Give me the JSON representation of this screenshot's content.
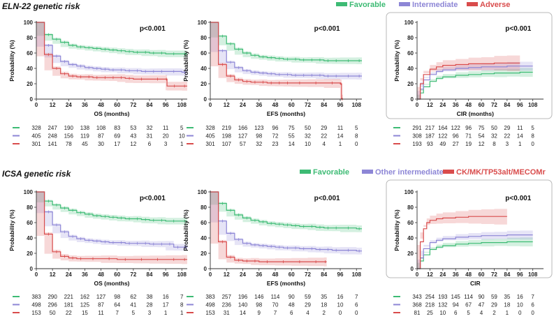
{
  "sections": [
    {
      "title": "ELN-22 genetic risk",
      "legend": [
        {
          "label": "Favorable",
          "color": "#3dbb74"
        },
        {
          "label": "Intermediate",
          "color": "#8d86d6"
        },
        {
          "label": "Adverse",
          "color": "#d94c4c"
        }
      ]
    },
    {
      "title": "ICSA genetic risk",
      "legend": [
        {
          "label": "Favorable",
          "color": "#3dbb74"
        },
        {
          "label": "Other intermediate",
          "color": "#8d86d6"
        },
        {
          "label": "CK/MK/TP53alt/MECOMr",
          "color": "#d94c4c"
        }
      ]
    }
  ],
  "chart_data": [
    {
      "type": "line",
      "id": "eln-os",
      "xlabel": "OS (months)",
      "ylabel": "Probability (%)",
      "pvalue": "p<0.001",
      "xlim": [
        0,
        112
      ],
      "ylim": [
        0,
        100
      ],
      "boxed": false,
      "xticks_max": 108,
      "series": [
        {
          "name": "Favorable",
          "color": "#3dbb74",
          "x": [
            0,
            6,
            12,
            18,
            24,
            30,
            36,
            42,
            48,
            54,
            60,
            66,
            72,
            78,
            84,
            90,
            96,
            108,
            112
          ],
          "y": [
            100,
            84,
            78,
            74,
            70,
            68,
            67,
            66,
            65,
            64,
            63,
            62,
            61,
            61,
            60,
            60,
            59,
            59,
            59
          ]
        },
        {
          "name": "Intermediate",
          "color": "#8d86d6",
          "x": [
            0,
            6,
            12,
            18,
            24,
            30,
            36,
            42,
            48,
            54,
            60,
            66,
            72,
            78,
            84,
            90,
            96,
            108,
            112
          ],
          "y": [
            100,
            70,
            56,
            49,
            45,
            43,
            41,
            40,
            39,
            38,
            38,
            37,
            37,
            36,
            36,
            36,
            36,
            35,
            35
          ]
        },
        {
          "name": "Adverse",
          "color": "#d94c4c",
          "x": [
            0,
            6,
            12,
            18,
            24,
            30,
            36,
            42,
            48,
            54,
            60,
            66,
            72,
            84,
            96,
            97,
            108,
            112
          ],
          "y": [
            100,
            58,
            40,
            33,
            30,
            29,
            29,
            28,
            28,
            28,
            28,
            27,
            26,
            26,
            26,
            17,
            17,
            17
          ]
        }
      ],
      "risk_table": [
        [
          "328",
          "247",
          "190",
          "138",
          "108",
          "83",
          "53",
          "32",
          "11",
          "5"
        ],
        [
          "405",
          "248",
          "156",
          "119",
          "87",
          "69",
          "43",
          "31",
          "20",
          "10"
        ],
        [
          "301",
          "141",
          "78",
          "45",
          "30",
          "17",
          "12",
          "6",
          "3",
          "1"
        ]
      ]
    },
    {
      "type": "line",
      "id": "eln-efs",
      "xlabel": "EFS (months)",
      "ylabel": "Probability (%)",
      "pvalue": "p<0.001",
      "xlim": [
        0,
        112
      ],
      "ylim": [
        0,
        100
      ],
      "boxed": false,
      "xticks_max": 108,
      "series": [
        {
          "name": "Favorable",
          "color": "#3dbb74",
          "x": [
            0,
            6,
            12,
            18,
            24,
            30,
            36,
            42,
            48,
            54,
            60,
            66,
            72,
            78,
            84,
            90,
            96,
            108,
            112
          ],
          "y": [
            100,
            82,
            72,
            65,
            60,
            57,
            55,
            54,
            53,
            52,
            52,
            51,
            51,
            51,
            50,
            50,
            50,
            50,
            50
          ]
        },
        {
          "name": "Intermediate",
          "color": "#8d86d6",
          "x": [
            0,
            6,
            12,
            18,
            24,
            30,
            36,
            42,
            48,
            54,
            60,
            66,
            72,
            78,
            84,
            90,
            96,
            108,
            112
          ],
          "y": [
            100,
            63,
            48,
            41,
            37,
            35,
            34,
            33,
            32,
            32,
            31,
            31,
            31,
            31,
            30,
            30,
            30,
            30,
            30
          ]
        },
        {
          "name": "Adverse",
          "color": "#d94c4c",
          "x": [
            0,
            6,
            12,
            18,
            24,
            30,
            36,
            42,
            48,
            54,
            60,
            72,
            84,
            96,
            97,
            98
          ],
          "y": [
            100,
            45,
            30,
            25,
            23,
            22,
            22,
            21,
            21,
            21,
            21,
            21,
            21,
            20,
            0,
            0
          ]
        }
      ],
      "risk_table": [
        [
          "328",
          "219",
          "166",
          "123",
          "96",
          "75",
          "50",
          "29",
          "11",
          "5"
        ],
        [
          "405",
          "198",
          "127",
          "98",
          "72",
          "55",
          "32",
          "22",
          "14",
          "8"
        ],
        [
          "301",
          "107",
          "57",
          "32",
          "23",
          "14",
          "10",
          "4",
          "1",
          "0"
        ]
      ]
    },
    {
      "type": "line",
      "id": "eln-cir",
      "xlabel": "CIR (months)",
      "ylabel": "Probability (%)",
      "pvalue": "p<0.001",
      "xlim": [
        0,
        118
      ],
      "ylim": [
        0,
        100
      ],
      "boxed": true,
      "xticks_max": 108,
      "series": [
        {
          "name": "Favorable",
          "color": "#3dbb74",
          "x": [
            0,
            3,
            6,
            12,
            18,
            24,
            36,
            48,
            60,
            72,
            84,
            96,
            108
          ],
          "y": [
            0,
            8,
            16,
            23,
            27,
            29,
            31,
            32,
            33,
            34,
            34,
            35,
            35
          ]
        },
        {
          "name": "Intermediate",
          "color": "#8d86d6",
          "x": [
            0,
            3,
            6,
            12,
            18,
            24,
            36,
            48,
            60,
            72,
            84,
            96,
            108
          ],
          "y": [
            0,
            13,
            25,
            32,
            36,
            38,
            40,
            41,
            42,
            42,
            43,
            43,
            43
          ]
        },
        {
          "name": "Adverse",
          "color": "#d94c4c",
          "x": [
            0,
            3,
            6,
            12,
            18,
            24,
            36,
            48,
            60,
            72,
            84,
            96
          ],
          "y": [
            0,
            20,
            32,
            39,
            42,
            44,
            45,
            46,
            46,
            47,
            47,
            47
          ]
        }
      ],
      "risk_table": [
        [
          "291",
          "217",
          "164",
          "122",
          "96",
          "75",
          "50",
          "29",
          "11",
          "5"
        ],
        [
          "308",
          "187",
          "122",
          "96",
          "71",
          "54",
          "32",
          "22",
          "14",
          "8"
        ],
        [
          "193",
          "93",
          "49",
          "27",
          "19",
          "12",
          "8",
          "3",
          "1",
          "0"
        ]
      ]
    },
    {
      "type": "line",
      "id": "icsa-os",
      "xlabel": "OS (months)",
      "ylabel": "Probability (%)",
      "pvalue": "p<0.001",
      "xlim": [
        0,
        112
      ],
      "ylim": [
        0,
        100
      ],
      "boxed": false,
      "xticks_max": 108,
      "series": [
        {
          "name": "Favorable",
          "color": "#3dbb74",
          "x": [
            0,
            6,
            12,
            18,
            24,
            30,
            36,
            42,
            48,
            54,
            60,
            66,
            72,
            78,
            84,
            90,
            96,
            108,
            112
          ],
          "y": [
            100,
            88,
            83,
            79,
            76,
            73,
            71,
            69,
            68,
            67,
            66,
            65,
            65,
            64,
            63,
            63,
            62,
            62,
            62
          ]
        },
        {
          "name": "Other intermediate",
          "color": "#8d86d6",
          "x": [
            0,
            6,
            12,
            18,
            24,
            30,
            36,
            42,
            48,
            54,
            60,
            66,
            72,
            78,
            84,
            90,
            96,
            102,
            108,
            112
          ],
          "y": [
            100,
            74,
            57,
            48,
            42,
            39,
            37,
            36,
            35,
            34,
            34,
            33,
            33,
            33,
            32,
            32,
            32,
            28,
            28,
            28
          ]
        },
        {
          "name": "CK/MK/TP53alt/MECOMr",
          "color": "#d94c4c",
          "x": [
            0,
            6,
            12,
            18,
            24,
            30,
            36,
            48,
            60,
            72,
            84,
            96,
            108,
            112
          ],
          "y": [
            100,
            45,
            22,
            16,
            14,
            13,
            13,
            13,
            12,
            12,
            12,
            12,
            12,
            12
          ]
        }
      ],
      "risk_table": [
        [
          "383",
          "290",
          "221",
          "162",
          "127",
          "98",
          "62",
          "38",
          "16",
          "7"
        ],
        [
          "498",
          "296",
          "181",
          "125",
          "87",
          "64",
          "41",
          "28",
          "17",
          "8"
        ],
        [
          "153",
          "50",
          "22",
          "15",
          "11",
          "7",
          "5",
          "3",
          "1",
          "1"
        ]
      ]
    },
    {
      "type": "line",
      "id": "icsa-efs",
      "xlabel": "EFS (months)",
      "ylabel": "Probability (%)",
      "pvalue": "p<0.001",
      "xlim": [
        0,
        112
      ],
      "ylim": [
        0,
        100
      ],
      "boxed": false,
      "xticks_max": 108,
      "series": [
        {
          "name": "Favorable",
          "color": "#3dbb74",
          "x": [
            0,
            6,
            12,
            18,
            24,
            30,
            36,
            42,
            48,
            54,
            60,
            66,
            72,
            78,
            84,
            90,
            96,
            108,
            112
          ],
          "y": [
            100,
            85,
            76,
            70,
            66,
            63,
            61,
            59,
            58,
            57,
            56,
            55,
            55,
            54,
            53,
            53,
            53,
            52,
            52
          ]
        },
        {
          "name": "Other intermediate",
          "color": "#8d86d6",
          "x": [
            0,
            6,
            12,
            18,
            24,
            30,
            36,
            42,
            48,
            54,
            60,
            66,
            72,
            78,
            84,
            90,
            96,
            108,
            112
          ],
          "y": [
            100,
            62,
            46,
            38,
            33,
            31,
            30,
            29,
            28,
            27,
            27,
            26,
            26,
            25,
            25,
            24,
            24,
            23,
            23
          ]
        },
        {
          "name": "CK/MK/TP53alt/MECOMr",
          "color": "#d94c4c",
          "x": [
            0,
            6,
            12,
            18,
            24,
            30,
            36,
            48,
            60,
            72,
            84,
            86
          ],
          "y": [
            100,
            35,
            15,
            11,
            10,
            10,
            9,
            9,
            9,
            9,
            9,
            9
          ]
        }
      ],
      "risk_table": [
        [
          "383",
          "257",
          "196",
          "146",
          "114",
          "90",
          "59",
          "35",
          "16",
          "7"
        ],
        [
          "498",
          "236",
          "140",
          "98",
          "70",
          "48",
          "29",
          "18",
          "10",
          "6"
        ],
        [
          "153",
          "31",
          "14",
          "9",
          "7",
          "6",
          "4",
          "2",
          "0",
          "0"
        ]
      ]
    },
    {
      "type": "line",
      "id": "icsa-cir",
      "xlabel": "CIR",
      "ylabel": "Probability (%)",
      "pvalue": "p<0.001",
      "xlim": [
        0,
        118
      ],
      "ylim": [
        0,
        100
      ],
      "boxed": true,
      "xticks_max": 108,
      "series": [
        {
          "name": "Favorable",
          "color": "#3dbb74",
          "x": [
            0,
            3,
            6,
            12,
            18,
            24,
            36,
            48,
            60,
            72,
            84,
            96,
            108
          ],
          "y": [
            0,
            10,
            18,
            25,
            28,
            30,
            32,
            33,
            34,
            34,
            35,
            35,
            35
          ]
        },
        {
          "name": "Other intermediate",
          "color": "#8d86d6",
          "x": [
            0,
            3,
            6,
            12,
            18,
            24,
            36,
            48,
            60,
            72,
            84,
            96,
            108
          ],
          "y": [
            0,
            14,
            26,
            34,
            37,
            39,
            41,
            42,
            43,
            43,
            44,
            44,
            44
          ]
        },
        {
          "name": "CK/MK/TP53alt/MECOMr",
          "color": "#d94c4c",
          "x": [
            0,
            3,
            6,
            9,
            12,
            18,
            24,
            36,
            48,
            60,
            72,
            84
          ],
          "y": [
            0,
            35,
            52,
            60,
            63,
            65,
            66,
            67,
            68,
            68,
            68,
            68
          ]
        }
      ],
      "risk_table": [
        [
          "343",
          "254",
          "193",
          "145",
          "114",
          "90",
          "59",
          "35",
          "16",
          "7"
        ],
        [
          "368",
          "218",
          "132",
          "94",
          "67",
          "47",
          "29",
          "18",
          "10",
          "6"
        ],
        [
          "81",
          "25",
          "10",
          "6",
          "5",
          "4",
          "2",
          "1",
          "0",
          "0"
        ]
      ]
    }
  ]
}
